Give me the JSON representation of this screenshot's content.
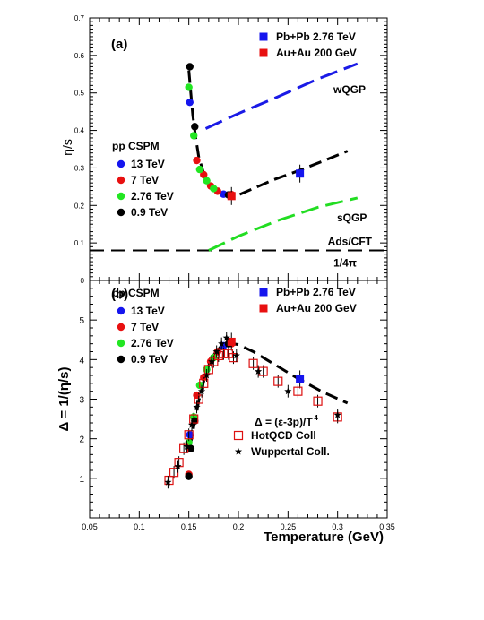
{
  "colors": {
    "blue": "#1515ee",
    "red": "#e81010",
    "green": "#22e622",
    "black": "#000000",
    "wqgp": "#1a1ae6",
    "sqgp": "#22dd22",
    "hotqcd": "#dd1111"
  },
  "chart_data": [
    {
      "type": "scatter",
      "panel_label": "(a)",
      "ylabel": "η/s",
      "xlim": [
        0.05,
        0.35
      ],
      "ylim": [
        0.0,
        0.7
      ],
      "y_ticks": [
        "0",
        "0.1",
        "0.2",
        "0.3",
        "0.4",
        "0.5",
        "0.6",
        "0.7"
      ],
      "legend_title": "pp CSPM",
      "series": [
        {
          "name": "13 TeV",
          "color": "blue",
          "marker": "circle",
          "points": [
            [
              0.151,
              0.475
            ],
            [
              0.185,
              0.23
            ]
          ]
        },
        {
          "name": "7 TeV",
          "color": "red",
          "marker": "circle",
          "points": [
            [
              0.158,
              0.32
            ],
            [
              0.165,
              0.282
            ],
            [
              0.172,
              0.252
            ],
            [
              0.179,
              0.238
            ],
            [
              0.193,
              0.229
            ]
          ]
        },
        {
          "name": "2.76 TeV",
          "color": "green",
          "marker": "circle",
          "points": [
            [
              0.15,
              0.515
            ],
            [
              0.155,
              0.386
            ],
            [
              0.161,
              0.296
            ],
            [
              0.168,
              0.266
            ],
            [
              0.175,
              0.245
            ]
          ]
        },
        {
          "name": "0.9 TeV",
          "color": "black",
          "marker": "circle",
          "points": [
            [
              0.151,
              0.57
            ],
            [
              0.156,
              0.41
            ],
            [
              0.19,
              0.228
            ]
          ]
        },
        {
          "name": "Pb+Pb 2.76 TeV",
          "color": "blue",
          "marker": "square",
          "points": [
            [
              0.262,
              0.285
            ]
          ]
        },
        {
          "name": "Au+Au 200 GeV",
          "color": "red",
          "marker": "square",
          "points": [
            [
              0.193,
              0.225
            ]
          ]
        }
      ],
      "curves": [
        {
          "label": "",
          "color": "black",
          "points": [
            [
              0.15,
              0.56
            ],
            [
              0.152,
              0.5
            ],
            [
              0.154,
              0.44
            ],
            [
              0.157,
              0.38
            ],
            [
              0.16,
              0.33
            ],
            [
              0.165,
              0.285
            ],
            [
              0.17,
              0.26
            ],
            [
              0.176,
              0.243
            ],
            [
              0.183,
              0.232
            ],
            [
              0.19,
              0.226
            ],
            [
              0.2,
              0.228
            ],
            [
              0.215,
              0.245
            ],
            [
              0.235,
              0.268
            ],
            [
              0.26,
              0.292
            ],
            [
              0.285,
              0.318
            ],
            [
              0.31,
              0.345
            ]
          ]
        },
        {
          "label": "wQGP",
          "color": "wqgp",
          "points": [
            [
              0.167,
              0.405
            ],
            [
              0.2,
              0.445
            ],
            [
              0.24,
              0.49
            ],
            [
              0.28,
              0.537
            ],
            [
              0.32,
              0.578
            ]
          ]
        },
        {
          "label": "sQGP",
          "color": "sqgp",
          "points": [
            [
              0.17,
              0.08
            ],
            [
              0.2,
              0.118
            ],
            [
              0.24,
              0.16
            ],
            [
              0.28,
              0.195
            ],
            [
              0.32,
              0.22
            ]
          ]
        }
      ],
      "reference_line": {
        "value": 0.08,
        "label_above": "Ads/CFT",
        "label_below": "1/4π"
      },
      "legend": [
        {
          "label": "Pb+Pb 2.76 TeV",
          "color": "blue",
          "marker": "square"
        },
        {
          "label": "Au+Au 200 GeV",
          "color": "red",
          "marker": "square"
        }
      ]
    },
    {
      "type": "scatter",
      "panel_label": "(b)",
      "ylabel": "Δ = 1/(η/s)",
      "xlabel": "Temperature (GeV)",
      "xlim": [
        0.05,
        0.35
      ],
      "ylim": [
        0.0,
        6.0
      ],
      "x_ticks": [
        "0.05",
        "0.1",
        "0.15",
        "0.2",
        "0.25",
        "0.3",
        "0.35"
      ],
      "y_ticks": [
        "1",
        "2",
        "3",
        "4",
        "5"
      ],
      "legend_title": "pp CSPM",
      "series": [
        {
          "name": "13 TeV",
          "color": "blue",
          "marker": "circle",
          "points": [
            [
              0.151,
              2.1
            ],
            [
              0.185,
              4.35
            ]
          ]
        },
        {
          "name": "7 TeV",
          "color": "red",
          "marker": "circle",
          "points": [
            [
              0.15,
              1.1
            ],
            [
              0.158,
              3.1
            ],
            [
              0.165,
              3.55
            ],
            [
              0.172,
              3.95
            ],
            [
              0.179,
              4.2
            ],
            [
              0.193,
              4.4
            ]
          ]
        },
        {
          "name": "2.76 TeV",
          "color": "green",
          "marker": "circle",
          "points": [
            [
              0.15,
              1.9
            ],
            [
              0.155,
              2.55
            ],
            [
              0.161,
              3.35
            ],
            [
              0.168,
              3.75
            ],
            [
              0.175,
              4.05
            ]
          ]
        },
        {
          "name": "0.9 TeV",
          "color": "black",
          "marker": "circle",
          "points": [
            [
              0.15,
              1.05
            ],
            [
              0.152,
              1.75
            ],
            [
              0.156,
              2.45
            ],
            [
              0.19,
              4.4
            ]
          ]
        },
        {
          "name": "Pb+Pb 2.76 TeV",
          "color": "blue",
          "marker": "square",
          "points": [
            [
              0.262,
              3.5
            ]
          ]
        },
        {
          "name": "Au+Au 200 GeV",
          "color": "red",
          "marker": "square",
          "points": [
            [
              0.193,
              4.45
            ]
          ]
        },
        {
          "name": "HotQCD Coll",
          "color": "hotqcd",
          "marker": "open-square",
          "points": [
            [
              0.13,
              0.95
            ],
            [
              0.135,
              1.15
            ],
            [
              0.14,
              1.4
            ],
            [
              0.145,
              1.75
            ],
            [
              0.15,
              2.1
            ],
            [
              0.155,
              2.5
            ],
            [
              0.16,
              3.0
            ],
            [
              0.165,
              3.4
            ],
            [
              0.17,
              3.75
            ],
            [
              0.175,
              3.95
            ],
            [
              0.18,
              4.1
            ],
            [
              0.185,
              4.15
            ],
            [
              0.19,
              4.15
            ],
            [
              0.195,
              4.05
            ],
            [
              0.215,
              3.9
            ],
            [
              0.225,
              3.7
            ],
            [
              0.24,
              3.45
            ],
            [
              0.26,
              3.2
            ],
            [
              0.28,
              2.95
            ],
            [
              0.3,
              2.55
            ]
          ]
        },
        {
          "name": "Wuppertal Coll.",
          "color": "black",
          "marker": "star",
          "points": [
            [
              0.129,
              0.9
            ],
            [
              0.139,
              1.3
            ],
            [
              0.148,
              1.8
            ],
            [
              0.153,
              2.35
            ],
            [
              0.158,
              2.8
            ],
            [
              0.163,
              3.2
            ],
            [
              0.168,
              3.6
            ],
            [
              0.173,
              3.95
            ],
            [
              0.178,
              4.2
            ],
            [
              0.183,
              4.4
            ],
            [
              0.188,
              4.55
            ],
            [
              0.198,
              4.1
            ],
            [
              0.22,
              3.7
            ],
            [
              0.25,
              3.2
            ],
            [
              0.3,
              2.6
            ]
          ]
        }
      ],
      "curves": [
        {
          "label": "",
          "color": "black",
          "points": [
            [
              0.151,
              1.78
            ],
            [
              0.155,
              2.3
            ],
            [
              0.16,
              2.95
            ],
            [
              0.165,
              3.45
            ],
            [
              0.17,
              3.85
            ],
            [
              0.176,
              4.15
            ],
            [
              0.183,
              4.35
            ],
            [
              0.19,
              4.42
            ],
            [
              0.2,
              4.38
            ],
            [
              0.215,
              4.2
            ],
            [
              0.235,
              3.9
            ],
            [
              0.26,
              3.52
            ],
            [
              0.285,
              3.18
            ],
            [
              0.31,
              2.9
            ]
          ]
        }
      ],
      "formula": {
        "text": "Δ = (ε-3p)/T",
        "superscript": "4"
      },
      "legend": [
        {
          "label": "Pb+Pb 2.76 TeV",
          "color": "blue",
          "marker": "square"
        },
        {
          "label": "Au+Au 200 GeV",
          "color": "red",
          "marker": "square"
        },
        {
          "label": "HotQCD Coll",
          "color": "hotqcd",
          "marker": "open-square"
        },
        {
          "label": "Wuppertal Coll.",
          "color": "black",
          "marker": "star"
        }
      ]
    }
  ]
}
